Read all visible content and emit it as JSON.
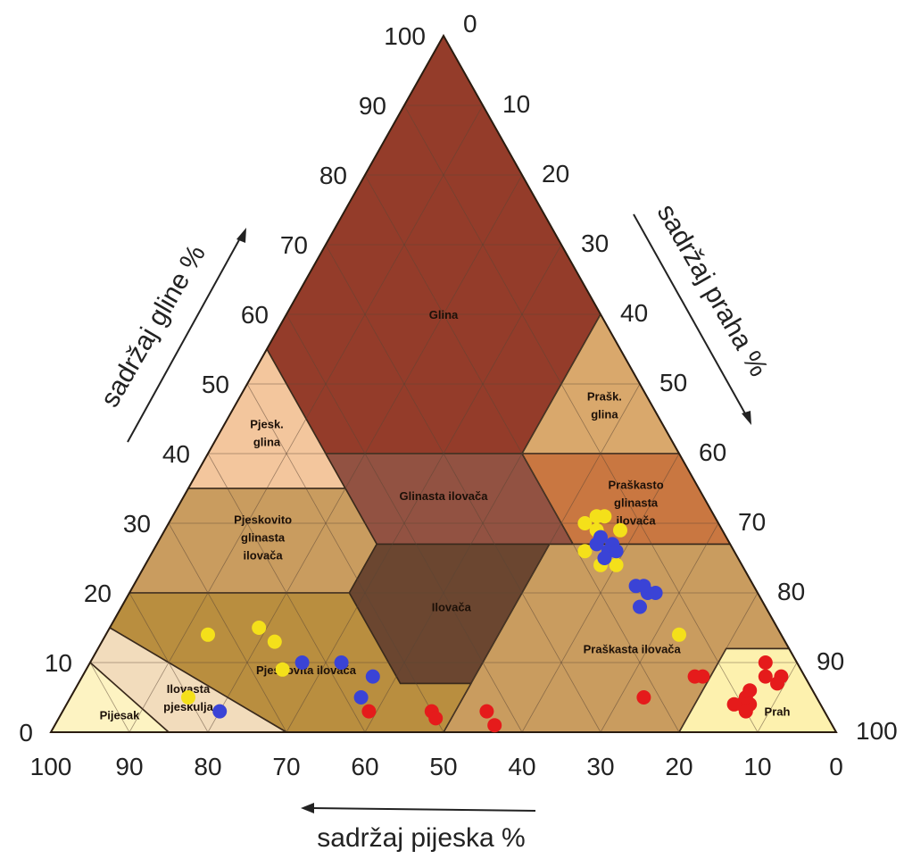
{
  "chart_data": {
    "type": "scatter",
    "subtype": "ternary",
    "axes": {
      "clay": {
        "label": "sadržaj gline %",
        "ticks": [
          "0",
          "10",
          "20",
          "30",
          "40",
          "50",
          "60",
          "70",
          "80",
          "90",
          "100"
        ]
      },
      "silt": {
        "label": "sadržaj praha %",
        "ticks": [
          "0",
          "10",
          "20",
          "30",
          "40",
          "50",
          "60",
          "70",
          "80",
          "90",
          "100"
        ]
      },
      "sand": {
        "label": "sadržaj pijeska %",
        "ticks": [
          "100",
          "90",
          "80",
          "70",
          "60",
          "50",
          "40",
          "30",
          "20",
          "10",
          "0"
        ]
      }
    },
    "grid": true,
    "regions": [
      {
        "key": "glina",
        "lines": [
          "Glina"
        ],
        "color": "#943c2a",
        "at": [
          20,
          60
        ]
      },
      {
        "key": "pjesk-glina",
        "lines": [
          "Pjesk.",
          "glina"
        ],
        "color": "#f3c69d",
        "at": [
          51,
          43
        ]
      },
      {
        "key": "prask-glina",
        "lines": [
          "Prašk.",
          "glina"
        ],
        "color": "#d9a86c",
        "at": [
          6,
          47
        ]
      },
      {
        "key": "glinasta-ilovaca",
        "lines": [
          "Glinasta ilovača"
        ],
        "color": "#925242",
        "at": [
          33,
          34
        ]
      },
      {
        "key": "praskasto-glinasta-ilovaca",
        "lines": [
          "Praškasto",
          "glinasta",
          "ilovača"
        ],
        "color": "#c97741",
        "at": [
          9,
          33
        ]
      },
      {
        "key": "pjeskovito-glinasta-ilovaca",
        "lines": [
          "Pjeskovito",
          "glinasta",
          "ilovača"
        ],
        "color": "#c99c5f",
        "at": [
          59,
          28
        ]
      },
      {
        "key": "ilovaca",
        "lines": [
          "Ilovača"
        ],
        "color": "#6b4630",
        "at": [
          40,
          18
        ]
      },
      {
        "key": "praskasta-ilovaca",
        "lines": [
          "Praškasta ilovača"
        ],
        "color": "#c99c5f",
        "at": [
          20,
          12
        ]
      },
      {
        "key": "pjeskovita-ilovaca",
        "lines": [
          "Pjeskovita ilovača"
        ],
        "color": "#b98e3f",
        "at": [
          63,
          9
        ]
      },
      {
        "key": "ilovasta-pjeskulja",
        "lines": [
          "Ilovasta",
          "pjeskulja"
        ],
        "color": "#f2dcbc",
        "at": [
          80,
          5
        ]
      },
      {
        "key": "pijesak",
        "lines": [
          "Pijesak"
        ],
        "color": "#fdf3c2",
        "at": [
          90,
          2.5
        ]
      },
      {
        "key": "prah",
        "lines": [
          "Prah"
        ],
        "color": "#fdf1ae",
        "at": [
          6,
          3
        ]
      }
    ],
    "series": [
      {
        "color": "#f4e01a",
        "points": [
          {
            "sand": 73,
            "clay": 14
          },
          {
            "sand": 66,
            "clay": 15
          },
          {
            "sand": 65,
            "clay": 13
          },
          {
            "sand": 66,
            "clay": 9
          },
          {
            "sand": 80,
            "clay": 5
          },
          {
            "sand": 13,
            "clay": 14
          },
          {
            "sand": 13,
            "clay": 29
          },
          {
            "sand": 14,
            "clay": 31
          },
          {
            "sand": 16,
            "clay": 29
          },
          {
            "sand": 15,
            "clay": 31
          },
          {
            "sand": 17,
            "clay": 30
          },
          {
            "sand": 17,
            "clay": 25
          },
          {
            "sand": 18,
            "clay": 24
          },
          {
            "sand": 16,
            "clay": 24
          },
          {
            "sand": 19,
            "clay": 26
          }
        ]
      },
      {
        "color": "#3a43d6",
        "points": [
          {
            "sand": 63,
            "clay": 10
          },
          {
            "sand": 58,
            "clay": 10
          },
          {
            "sand": 55,
            "clay": 8
          },
          {
            "sand": 58,
            "clay": 5
          },
          {
            "sand": 77,
            "clay": 3
          },
          {
            "sand": 16,
            "clay": 26
          },
          {
            "sand": 17,
            "clay": 27
          },
          {
            "sand": 15,
            "clay": 27
          },
          {
            "sand": 16,
            "clay": 28
          },
          {
            "sand": 17,
            "clay": 25
          },
          {
            "sand": 15,
            "clay": 26
          },
          {
            "sand": 14,
            "clay": 20
          },
          {
            "sand": 13,
            "clay": 20
          },
          {
            "sand": 15,
            "clay": 21
          },
          {
            "sand": 16,
            "clay": 18
          },
          {
            "sand": 14,
            "clay": 21
          }
        ]
      },
      {
        "color": "#e51b1b",
        "points": [
          {
            "sand": 58,
            "clay": 3
          },
          {
            "sand": 50,
            "clay": 3
          },
          {
            "sand": 50,
            "clay": 2
          },
          {
            "sand": 43,
            "clay": 3
          },
          {
            "sand": 43,
            "clay": 1
          },
          {
            "sand": 22,
            "clay": 5
          },
          {
            "sand": 8,
            "clay": 6
          },
          {
            "sand": 9,
            "clay": 5
          },
          {
            "sand": 9,
            "clay": 4
          },
          {
            "sand": 10,
            "clay": 4
          },
          {
            "sand": 11,
            "clay": 4
          },
          {
            "sand": 10,
            "clay": 3
          },
          {
            "sand": 4,
            "clay": 10
          },
          {
            "sand": 3,
            "clay": 8
          },
          {
            "sand": 4,
            "clay": 7
          },
          {
            "sand": 5,
            "clay": 8
          },
          {
            "sand": 13,
            "clay": 8
          },
          {
            "sand": 14,
            "clay": 8
          }
        ]
      }
    ]
  }
}
